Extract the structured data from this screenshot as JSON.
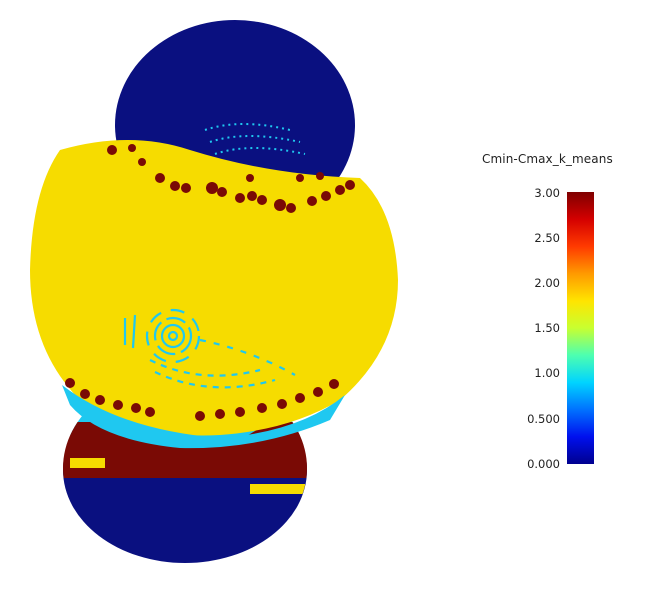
{
  "legend": {
    "title": "Cmin-Cmax_k_means",
    "ticks": [
      "3.00",
      "2.50",
      "2.00",
      "1.50",
      "1.00",
      "0.500",
      "0.000"
    ],
    "range": [
      0.0,
      3.0
    ]
  },
  "colors": {
    "low": "#0a1080",
    "cyan": "#1fc8f0",
    "yellow": "#f6dc00",
    "high": "#7a0a05"
  }
}
